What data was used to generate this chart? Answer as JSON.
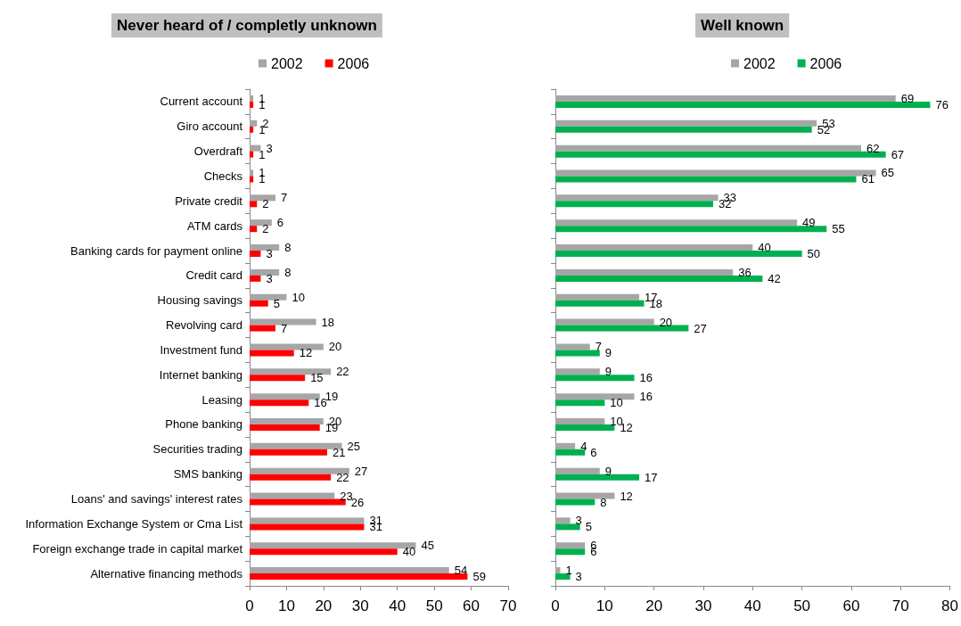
{
  "chart_data": [
    {
      "type": "bar",
      "orientation": "horizontal",
      "title": "Never heard of / completly unknown",
      "legend": "top",
      "data_labels": true,
      "grid": false,
      "categories": [
        "Current account",
        "Giro account",
        "Overdraft",
        "Checks",
        "Private credit",
        "ATM cards",
        "Banking cards for payment online",
        "Credit card",
        "Housing savings",
        "Revolving card",
        "Investment fund",
        "Internet banking",
        "Leasing",
        "Phone banking",
        "Securities trading",
        "SMS banking",
        "Loans' and savings' interest rates",
        "Information Exchange System or Cma List",
        "Foreign exchange trade in capital market",
        "Alternative financing methods"
      ],
      "series": [
        {
          "name": "2002",
          "color": "#a6a6a6",
          "values": [
            1,
            2,
            3,
            1,
            7,
            6,
            8,
            8,
            10,
            18,
            20,
            22,
            19,
            20,
            25,
            27,
            23,
            31,
            45,
            54
          ]
        },
        {
          "name": "2006",
          "color": "#ff0000",
          "values": [
            1,
            1,
            1,
            1,
            2,
            2,
            3,
            3,
            5,
            7,
            12,
            15,
            16,
            19,
            21,
            22,
            26,
            31,
            40,
            59
          ]
        }
      ],
      "xlim": [
        0,
        70
      ],
      "xticks": [
        0,
        10,
        20,
        30,
        40,
        50,
        60,
        70
      ]
    },
    {
      "type": "bar",
      "orientation": "horizontal",
      "title": "Well known",
      "legend": "top",
      "data_labels": true,
      "grid": false,
      "tick_labels": "x",
      "categories": [
        null,
        null,
        null,
        null,
        null,
        null,
        null,
        null,
        null,
        null,
        null,
        null,
        null,
        null,
        null,
        null,
        null,
        null,
        null,
        null
      ],
      "series": [
        {
          "name": "2002",
          "color": "#a6a6a6",
          "values": [
            69,
            53,
            62,
            65,
            33,
            49,
            40,
            36,
            17,
            20,
            7,
            9,
            16,
            10,
            4,
            9,
            12,
            3,
            6,
            1
          ]
        },
        {
          "name": "2006",
          "color": "#00b050",
          "values": [
            76,
            52,
            67,
            61,
            32,
            55,
            50,
            42,
            18,
            27,
            9,
            16,
            10,
            12,
            6,
            17,
            8,
            5,
            6,
            3
          ]
        }
      ],
      "xlim": [
        0,
        80
      ],
      "xticks": [
        0,
        10,
        20,
        30,
        40,
        50,
        60,
        70,
        80
      ]
    }
  ]
}
